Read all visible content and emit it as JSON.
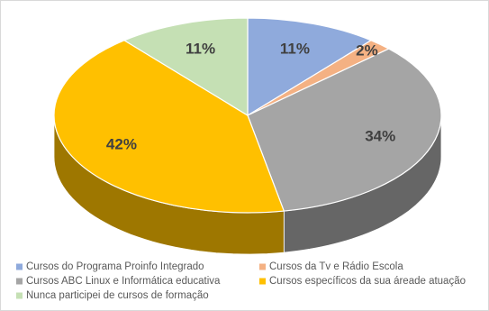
{
  "chart_data": {
    "type": "pie",
    "categories": [
      "Cursos do Programa Proinfo Integrado",
      "Cursos da Tv e Rádio Escola",
      "Cursos ABC Linux e Informática educativa",
      "Cursos específicos da sua áreade atuação",
      "Nunca participei de cursos de formação"
    ],
    "values": [
      11,
      2,
      34,
      42,
      11
    ],
    "value_labels": [
      "11%",
      "2%",
      "34%",
      "42%",
      "11%"
    ],
    "colors": [
      "#8faadc",
      "#f4b183",
      "#a5a5a5",
      "#ffc000",
      "#c5e0b4"
    ],
    "legend": "bottom"
  }
}
